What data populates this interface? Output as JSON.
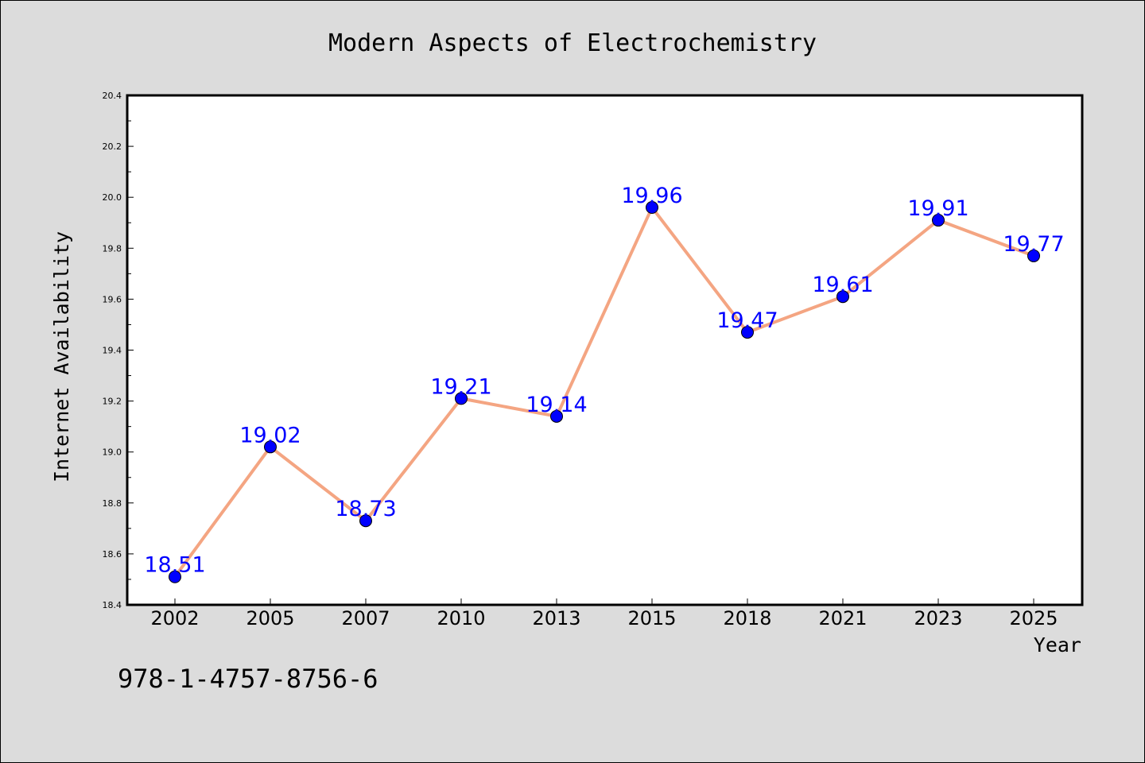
{
  "chart_data": {
    "type": "line",
    "title": "Modern Aspects of Electrochemistry",
    "xlabel": "Year",
    "ylabel": "Internet Availability",
    "categories": [
      "2002",
      "2005",
      "2007",
      "2010",
      "2013",
      "2015",
      "2018",
      "2021",
      "2023",
      "2025"
    ],
    "values": [
      18.51,
      19.02,
      18.73,
      19.21,
      19.14,
      19.96,
      19.47,
      19.61,
      19.91,
      19.77
    ],
    "data_labels": [
      "18.51",
      "19.02",
      "18.73",
      "19.21",
      "19.14",
      "19.96",
      "19.47",
      "19.61",
      "19.91",
      "19.77"
    ],
    "ylim": [
      18.4,
      20.4
    ],
    "yticks": [
      "18.4",
      "18.6",
      "18.8",
      "19.0",
      "19.2",
      "19.4",
      "19.6",
      "19.8",
      "20.0",
      "20.2",
      "20.4"
    ],
    "grid": false,
    "legend": "none",
    "colors": {
      "line": "#f4a582",
      "marker": "#0000ff",
      "label": "#0000ff"
    }
  },
  "footer": {
    "isbn": "978-1-4757-8756-6"
  }
}
